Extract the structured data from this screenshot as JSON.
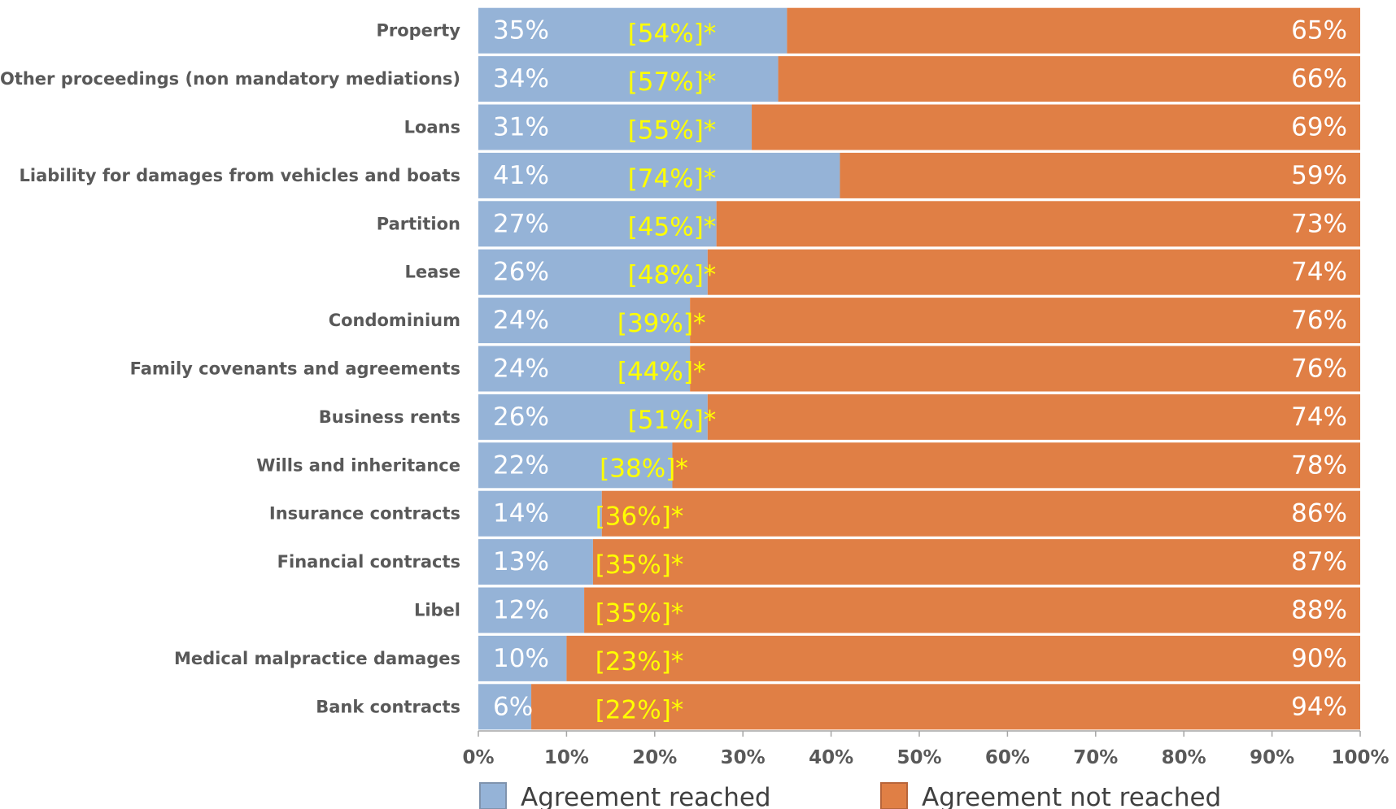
{
  "chart_data": {
    "type": "bar",
    "orientation": "horizontal",
    "stacked": true,
    "categories": [
      "Property",
      "Other proceedings (non mandatory mediations)",
      "Loans",
      "Liability for  damages from vehicles and boats",
      "Partition",
      "Lease",
      "Condominium",
      "Family covenants and agreements",
      "Business rents",
      "Wills  and inheritance",
      "Insurance contracts",
      "Financial contracts",
      "Libel",
      "Medical malpractice damages",
      "Bank contracts"
    ],
    "series": [
      {
        "name": "Agreement reached",
        "color": "#95B3D7",
        "values": [
          35,
          34,
          31,
          41,
          27,
          26,
          24,
          24,
          26,
          22,
          14,
          13,
          12,
          10,
          6
        ],
        "labels": [
          "35%",
          "34%",
          "31%",
          "41%",
          "27%",
          "26%",
          "24%",
          "24%",
          "26%",
          "22%",
          "14%",
          "13%",
          "12%",
          "10%",
          "6%"
        ]
      },
      {
        "name": "Agreement not reached",
        "color": "#E07F45",
        "values": [
          65,
          66,
          69,
          59,
          73,
          74,
          76,
          76,
          74,
          78,
          86,
          87,
          88,
          90,
          94
        ],
        "labels": [
          "65%",
          "66%",
          "69%",
          "59%",
          "73%",
          "74%",
          "76%",
          "76%",
          "74%",
          "78%",
          "86%",
          "87%",
          "88%",
          "90%",
          "94%"
        ]
      }
    ],
    "annotations": [
      "[54%]*",
      "[57%]*",
      "[55%]*",
      "[74%]*",
      "[45%]*",
      "[48%]*",
      "[39%]*",
      "[44%]*",
      "[51%]*",
      "[38%]*",
      "[36%]*",
      "[35%]*",
      "[35%]*",
      "[23%]*",
      "[22%]*"
    ],
    "annotation_color": "#FFFF00",
    "xlim": [
      0,
      100
    ],
    "xticks": [
      "0%",
      "10%",
      "20%",
      "30%",
      "40%",
      "50%",
      "60%",
      "70%",
      "80%",
      "90%",
      "100%"
    ],
    "grid": false,
    "legend_position": "bottom"
  }
}
